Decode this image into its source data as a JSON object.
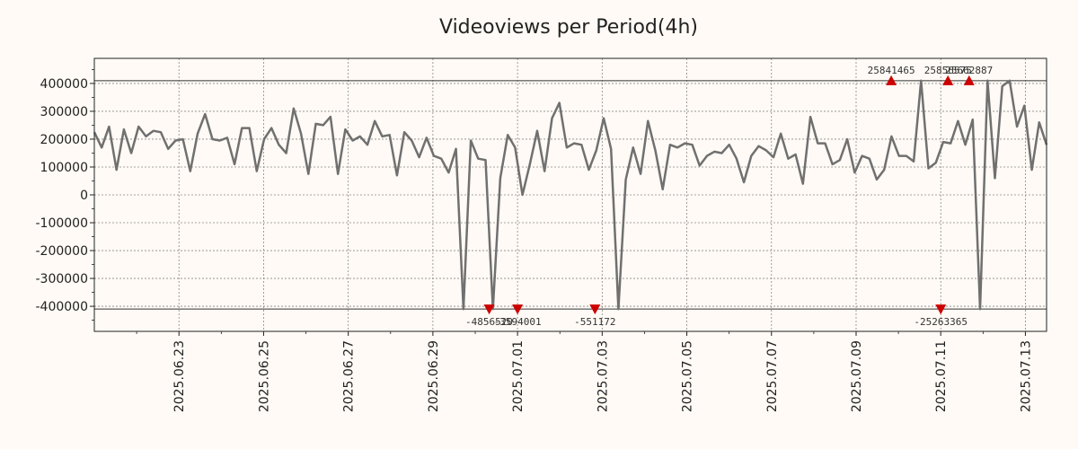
{
  "chart_data": {
    "type": "line",
    "title": "Videoviews per Period(4h)",
    "xlabel": "",
    "ylabel": "",
    "ylim": [
      -490000,
      490000
    ],
    "xlim_days": [
      0,
      22.5
    ],
    "x_origin": "2025-06-21",
    "y_ticks": [
      400000,
      300000,
      200000,
      100000,
      0,
      -100000,
      -200000,
      -300000,
      -400000
    ],
    "y_tick_labels": [
      "400000",
      "300000",
      "200000",
      "100000",
      "0",
      "-100000",
      "-200000",
      "-300000",
      "-400000"
    ],
    "x_tick_days": [
      2,
      4,
      6,
      8,
      10,
      12,
      14,
      16,
      18,
      20,
      22
    ],
    "x_tick_labels": [
      "2025.06.23",
      "2025.06.25",
      "2025.06.27",
      "2025.06.29",
      "2025.07.01",
      "2025.07.03",
      "2025.07.05",
      "2025.07.07",
      "2025.07.09",
      "2025.07.11",
      "2025.07.13"
    ],
    "clip_levels": [
      410000,
      -410000
    ],
    "series": [
      {
        "name": "Videoviews",
        "color": "#707070",
        "values": [
          225000,
          170000,
          245000,
          90000,
          235000,
          150000,
          245000,
          210000,
          230000,
          225000,
          165000,
          195000,
          200000,
          85000,
          220000,
          290000,
          200000,
          195000,
          205000,
          110000,
          240000,
          240000,
          85000,
          200000,
          240000,
          180000,
          150000,
          310000,
          220000,
          75000,
          255000,
          250000,
          280000,
          75000,
          235000,
          195000,
          210000,
          180000,
          265000,
          210000,
          215000,
          70000,
          225000,
          195000,
          135000,
          205000,
          140000,
          130000,
          80000,
          165000,
          -410000,
          195000,
          130000,
          125000,
          -410000,
          60000,
          215000,
          170000,
          0,
          110000,
          230000,
          85000,
          275000,
          330000,
          170000,
          185000,
          180000,
          90000,
          160000,
          275000,
          165000,
          -410000,
          55000,
          170000,
          75000,
          265000,
          160000,
          20000,
          180000,
          170000,
          185000,
          180000,
          105000,
          140000,
          155000,
          150000,
          180000,
          130000,
          45000,
          140000,
          175000,
          160000,
          135000,
          220000,
          130000,
          145000,
          40000,
          280000,
          185000,
          185000,
          110000,
          125000,
          200000,
          80000,
          140000,
          130000,
          55000,
          90000,
          210000,
          140000,
          140000,
          120000,
          410000,
          95000,
          115000,
          190000,
          185000,
          265000,
          180000,
          270000,
          -410000,
          410000,
          60000,
          390000,
          410000,
          245000,
          320000,
          90000,
          260000,
          180000
        ]
      }
    ],
    "annotations": [
      {
        "label": "-4856520",
        "x_day": 9.33,
        "y": -410000,
        "dir": "down"
      },
      {
        "label": "-3594001",
        "x_day": 10.0,
        "y": -410000,
        "dir": "down"
      },
      {
        "label": "-551172",
        "x_day": 11.83,
        "y": -410000,
        "dir": "down"
      },
      {
        "label": "25841465",
        "x_day": 18.83,
        "y": 410000,
        "dir": "up"
      },
      {
        "label": "-25263365",
        "x_day": 20.0,
        "y": -410000,
        "dir": "down"
      },
      {
        "label": "25856575",
        "x_day": 20.17,
        "y": 410000,
        "dir": "up"
      },
      {
        "label": "25662887",
        "x_day": 20.67,
        "y": 410000,
        "dir": "up"
      }
    ]
  }
}
